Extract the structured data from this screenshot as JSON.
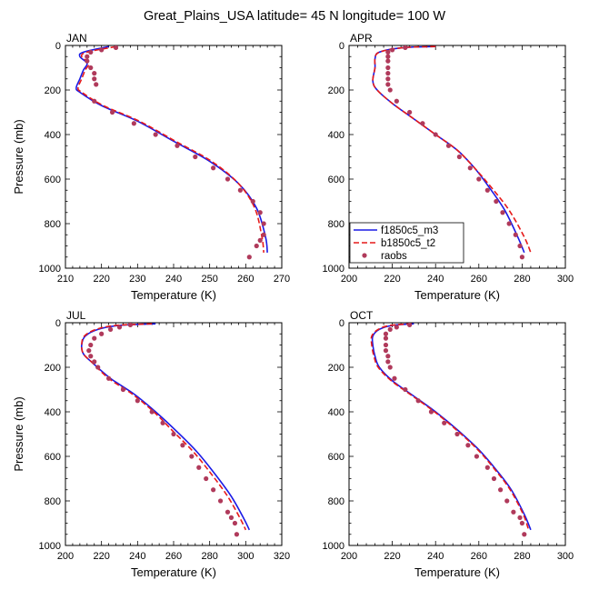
{
  "figure": {
    "title": "Great_Plains_USA  latitude= 45 N longitude= 100 W"
  },
  "legend": {
    "entries": [
      {
        "name": "f1850c5_m3",
        "color": "#1a1ae6",
        "style": "solid"
      },
      {
        "name": "b1850c5_t2",
        "color": "#e61a1a",
        "style": "dashed"
      },
      {
        "name": "raobs",
        "color": "#b03a5b",
        "style": "marker"
      }
    ]
  },
  "chart_data": [
    {
      "type": "line",
      "panel": "JAN",
      "title": "JAN",
      "xlabel": "Temperature (K)",
      "ylabel": "Pressure (mb)",
      "xlim": [
        210,
        270
      ],
      "xticks": [
        210,
        220,
        230,
        240,
        250,
        260,
        270
      ],
      "ylim": [
        1000,
        0
      ],
      "yticks": [
        0,
        200,
        400,
        600,
        800,
        1000
      ],
      "y_reversed": true,
      "series": [
        {
          "name": "f1850c5_m3",
          "x": [
            222,
            215,
            214,
            216,
            215,
            214,
            213,
            214,
            220,
            230,
            240,
            250,
            258,
            263,
            265.5,
            266
          ],
          "y": [
            5,
            30,
            50,
            80,
            110,
            150,
            190,
            210,
            270,
            340,
            430,
            520,
            620,
            730,
            860,
            930
          ]
        },
        {
          "name": "b1850c5_t2",
          "x": [
            224,
            216,
            214.5,
            216.5,
            215.5,
            214.5,
            213.5,
            214.5,
            220.5,
            230.5,
            240.5,
            250.5,
            258,
            262.5,
            264.5,
            265
          ],
          "y": [
            5,
            30,
            50,
            80,
            110,
            150,
            190,
            210,
            270,
            340,
            430,
            520,
            620,
            730,
            860,
            930
          ]
        },
        {
          "name": "raobs",
          "x": [
            224,
            220,
            217,
            216,
            216,
            217,
            218,
            218,
            218.5,
            218,
            223,
            229,
            235,
            241,
            246,
            251,
            255,
            258.5,
            262,
            264,
            265,
            265,
            264,
            263,
            261
          ],
          "y": [
            10,
            20,
            30,
            50,
            70,
            100,
            125,
            150,
            175,
            250,
            300,
            350,
            400,
            450,
            500,
            550,
            600,
            650,
            700,
            750,
            800,
            850,
            875,
            900,
            950
          ]
        }
      ]
    },
    {
      "type": "line",
      "panel": "APR",
      "title": "APR",
      "xlabel": "Temperature (K)",
      "ylabel": "",
      "xlim": [
        200,
        300
      ],
      "xticks": [
        200,
        220,
        240,
        260,
        280,
        300
      ],
      "ylim": [
        1000,
        0
      ],
      "yticks": [
        0,
        200,
        400,
        600,
        800,
        1000
      ],
      "y_reversed": true,
      "series": [
        {
          "name": "f1850c5_m3",
          "x": [
            240,
            225,
            214,
            212,
            212,
            211,
            213,
            220,
            230,
            240,
            250,
            258,
            265,
            272,
            278,
            281
          ],
          "y": [
            5,
            10,
            30,
            60,
            100,
            160,
            200,
            260,
            330,
            400,
            470,
            550,
            640,
            740,
            860,
            930
          ]
        },
        {
          "name": "b1850c5_t2",
          "x": [
            240,
            225,
            214,
            212,
            212,
            211,
            213,
            220,
            230,
            240,
            250,
            258,
            266,
            274,
            281,
            284
          ],
          "y": [
            5,
            10,
            30,
            60,
            100,
            160,
            200,
            260,
            330,
            400,
            470,
            550,
            640,
            740,
            860,
            930
          ]
        },
        {
          "name": "raobs",
          "x": [
            226,
            220,
            218,
            218,
            218,
            218,
            218,
            218,
            218,
            219,
            222,
            228,
            234,
            240,
            246,
            251,
            256,
            260,
            264,
            268,
            271,
            274,
            277,
            279,
            280
          ],
          "y": [
            10,
            20,
            30,
            50,
            70,
            100,
            125,
            150,
            175,
            200,
            250,
            300,
            350,
            400,
            450,
            500,
            550,
            600,
            650,
            700,
            750,
            800,
            850,
            900,
            950
          ]
        }
      ]
    },
    {
      "type": "line",
      "panel": "JUL",
      "title": "JUL",
      "xlabel": "Temperature (K)",
      "ylabel": "Pressure (mb)",
      "xlim": [
        200,
        320
      ],
      "xticks": [
        200,
        220,
        240,
        260,
        280,
        300,
        320
      ],
      "ylim": [
        1000,
        0
      ],
      "yticks": [
        0,
        200,
        400,
        600,
        800,
        1000
      ],
      "y_reversed": true,
      "series": [
        {
          "name": "f1850c5_m3",
          "x": [
            250,
            230,
            218,
            211,
            209,
            210,
            215,
            225,
            238,
            250,
            262,
            273,
            283,
            292,
            299,
            302
          ],
          "y": [
            5,
            12,
            30,
            60,
            100,
            140,
            180,
            250,
            320,
            400,
            490,
            580,
            680,
            780,
            880,
            930
          ]
        },
        {
          "name": "b1850c5_t2",
          "x": [
            248,
            228,
            217,
            210.5,
            209,
            210,
            215,
            224,
            237,
            249,
            260,
            271,
            281,
            290,
            297,
            300
          ],
          "y": [
            5,
            12,
            30,
            60,
            100,
            140,
            180,
            250,
            320,
            400,
            490,
            580,
            680,
            780,
            880,
            930
          ]
        },
        {
          "name": "raobs",
          "x": [
            236,
            230,
            225,
            220,
            216,
            214,
            213,
            214,
            216,
            218,
            224,
            232,
            240,
            248,
            254,
            260,
            265,
            270,
            274,
            278,
            282,
            286,
            290,
            292,
            294,
            295
          ],
          "y": [
            10,
            20,
            30,
            50,
            70,
            100,
            125,
            150,
            175,
            200,
            250,
            300,
            350,
            400,
            450,
            500,
            550,
            600,
            650,
            700,
            750,
            800,
            850,
            875,
            900,
            950
          ]
        }
      ]
    },
    {
      "type": "line",
      "panel": "OCT",
      "title": "OCT",
      "xlabel": "Temperature (K)",
      "ylabel": "",
      "xlim": [
        200,
        300
      ],
      "xticks": [
        200,
        220,
        240,
        260,
        280,
        300
      ],
      "ylim": [
        1000,
        0
      ],
      "yticks": [
        0,
        200,
        400,
        600,
        800,
        1000
      ],
      "y_reversed": true,
      "series": [
        {
          "name": "f1850c5_m3",
          "x": [
            230,
            220,
            214,
            211,
            211,
            212,
            214,
            220,
            230,
            240,
            250,
            260,
            268,
            275,
            281,
            284
          ],
          "y": [
            5,
            12,
            30,
            60,
            100,
            150,
            200,
            260,
            330,
            400,
            480,
            570,
            660,
            750,
            860,
            930
          ]
        },
        {
          "name": "b1850c5_t2",
          "x": [
            229,
            219,
            213.5,
            210.5,
            210.5,
            211.5,
            213.5,
            219.5,
            229.5,
            239.5,
            249.5,
            259.5,
            267.5,
            274.5,
            280.5,
            283
          ],
          "y": [
            5,
            12,
            30,
            60,
            100,
            150,
            200,
            260,
            330,
            400,
            480,
            570,
            660,
            750,
            860,
            930
          ]
        },
        {
          "name": "raobs",
          "x": [
            228,
            222,
            219,
            217,
            217,
            217,
            217,
            218,
            218,
            219,
            221,
            226,
            232,
            238,
            244,
            250,
            255,
            259,
            264,
            267,
            270,
            273,
            276,
            279,
            280,
            281
          ],
          "y": [
            10,
            20,
            30,
            50,
            70,
            100,
            125,
            150,
            175,
            200,
            250,
            300,
            350,
            400,
            450,
            500,
            550,
            600,
            650,
            700,
            750,
            800,
            850,
            875,
            900,
            950
          ]
        }
      ]
    }
  ]
}
